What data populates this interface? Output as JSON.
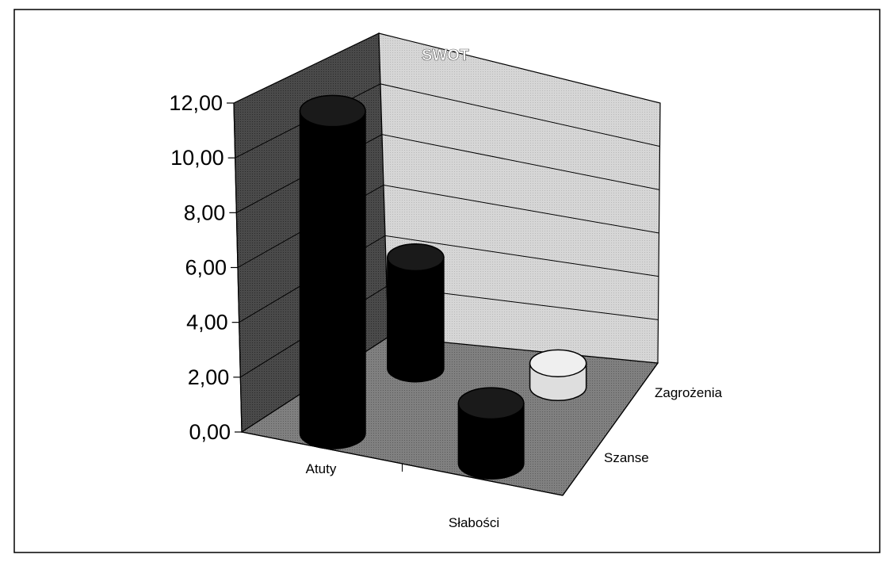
{
  "chart_data": {
    "type": "bar",
    "style": "3d-cylinder",
    "title": "SWOT",
    "front_categories": [
      "Atuty",
      "Słabości"
    ],
    "depth_categories": [
      "Szanse",
      "Zagrożenia"
    ],
    "y_ticks": [
      "0,00",
      "2,00",
      "4,00",
      "6,00",
      "8,00",
      "10,00",
      "12,00"
    ],
    "ylim": [
      0,
      12
    ],
    "grid": true,
    "points": [
      {
        "category": "Atuty",
        "series": "Szanse",
        "value": 11.8,
        "color": "#000000"
      },
      {
        "category": "Atuty",
        "series": "Zagrożenia",
        "value": 4.2,
        "color": "#000000"
      },
      {
        "category": "Słabości",
        "series": "Szanse",
        "value": 2.2,
        "color": "#000000"
      },
      {
        "category": "Słabości",
        "series": "Zagrożenia",
        "value": 0.9,
        "color": "#dedede"
      }
    ],
    "colors": {
      "frame": "#000000",
      "back_wall": "#cfcfcf",
      "side_wall": "#4a4a4a",
      "floor": "#787878",
      "cylinder_dark": "#000000",
      "cylinder_light": "#dedede",
      "title_text": "#ffffff"
    }
  }
}
